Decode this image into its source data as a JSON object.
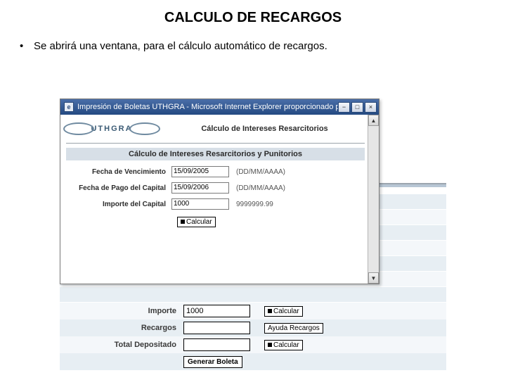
{
  "slide": {
    "title": "CALCULO DE RECARGOS",
    "bullet": "Se abrirá una ventana, para el cálculo automático de recargos."
  },
  "colors": {
    "titlebar_start": "#4a6ea8",
    "titlebar_end": "#244a82",
    "section_bar": "#d7dfe7",
    "stripe_a": "#e7eef3",
    "stripe_b": "#f4f7fa",
    "text": "#000000"
  },
  "popup": {
    "window_title": "Impresión de Boletas UTHGRA - Microsoft Internet Explorer proporcionado p...",
    "logo_text": "UTHGRA",
    "header_line": "Cálculo de Intereses Resarcitorios",
    "section_title": "Cálculo de Intereses Resarcitorios y Punitorios",
    "fields": {
      "fecha_venc": {
        "label": "Fecha de Vencimiento",
        "value": "15/09/2005",
        "hint": "(DD/MM/AAAA)"
      },
      "fecha_pago": {
        "label": "Fecha de Pago del Capital",
        "value": "15/09/2006",
        "hint": "(DD/MM/AAAA)"
      },
      "importe_cap": {
        "label": "Importe del Capital",
        "value": "1000",
        "hint": "9999999.99"
      }
    },
    "calc_button": "Calcular"
  },
  "bg_form": {
    "rows": {
      "importe": {
        "label": "Importe",
        "value": "1000",
        "button": "Calcular"
      },
      "recargos": {
        "label": "Recargos",
        "value": "",
        "button": "Ayuda Recargos"
      },
      "total": {
        "label": "Total Depositado",
        "value": "",
        "button": "Calcular"
      }
    },
    "generate_button": "Generar Boleta"
  },
  "icons": {
    "app": "e",
    "minimize": "−",
    "maximize": "□",
    "close": "×",
    "scroll_up": "▲",
    "scroll_down": "▼",
    "bullet": "•"
  }
}
